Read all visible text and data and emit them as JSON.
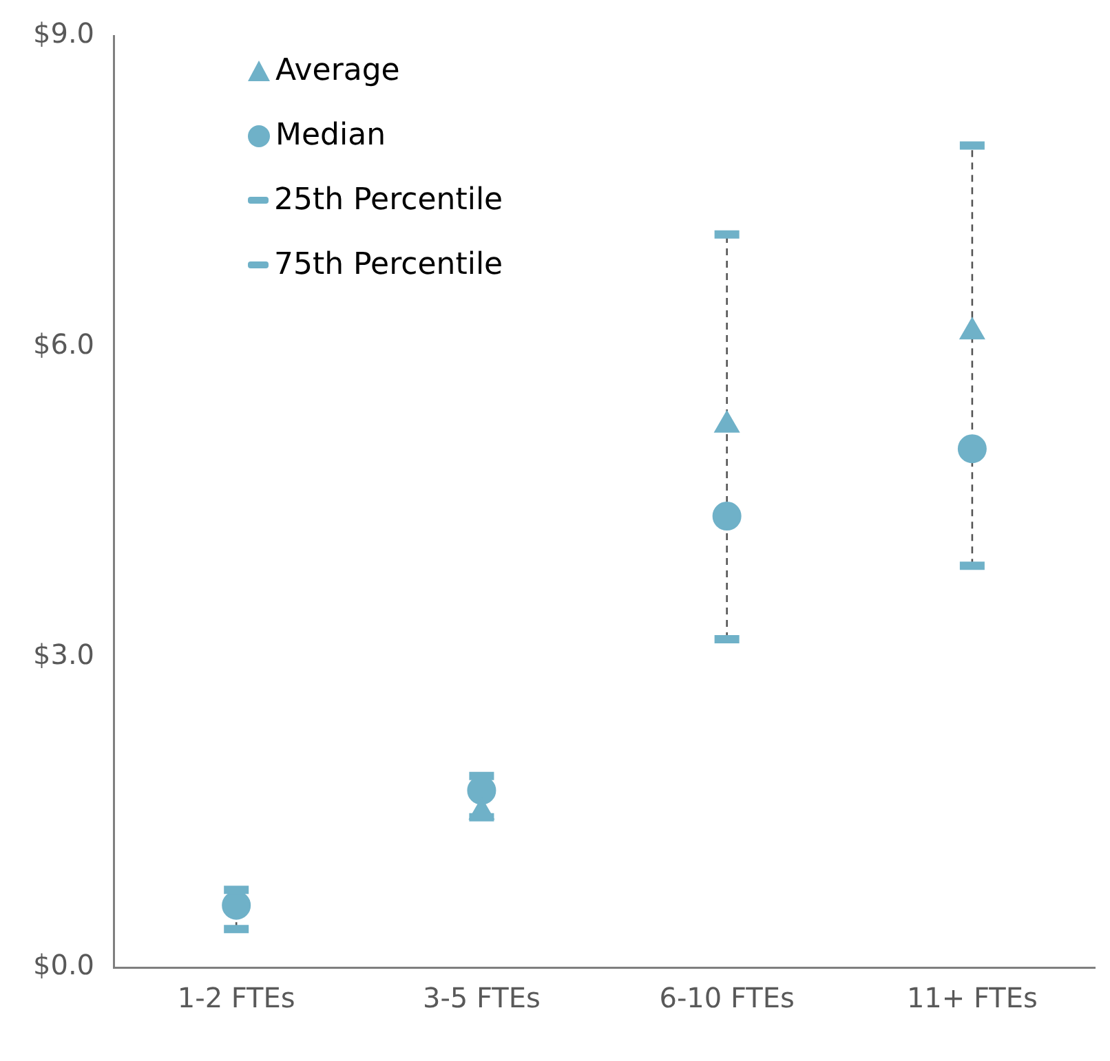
{
  "chart_data": {
    "type": "scatter",
    "categories": [
      "1-2 FTEs",
      "3-5 FTEs",
      "6-10 FTEs",
      "11+ FTEs"
    ],
    "series": [
      {
        "name": "Average",
        "color": "#6fb1c8",
        "marker": "triangle",
        "values": [
          null,
          1.5,
          5.24,
          6.14
        ]
      },
      {
        "name": "Median",
        "color": "#6fb1c8",
        "marker": "circle",
        "values": [
          0.6,
          1.71,
          4.36,
          5.01
        ]
      },
      {
        "name": "25th Percentile",
        "color": "#6fb1c8",
        "values": [
          0.37,
          1.45,
          3.17,
          3.88
        ]
      },
      {
        "name": "75th Percentile",
        "color": "#6fb1c8",
        "values": [
          0.75,
          1.85,
          7.08,
          7.94
        ]
      }
    ],
    "ylim": [
      0,
      9
    ],
    "yticks": [
      {
        "value": 0,
        "label": "$0.0"
      },
      {
        "value": 3,
        "label": "$3.0"
      },
      {
        "value": 6,
        "label": "$6.0"
      },
      {
        "value": 9,
        "label": "$9.0"
      }
    ],
    "grid": false,
    "legend": "top left"
  }
}
